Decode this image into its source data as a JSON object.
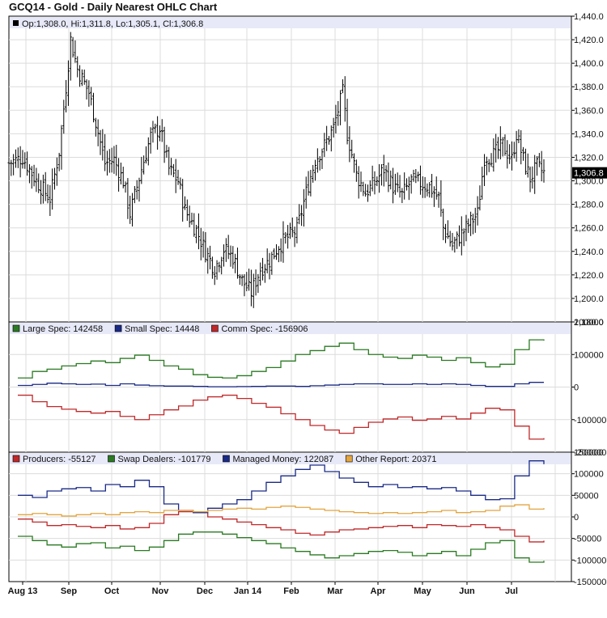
{
  "title": "GCQ14 - Gold - Daily Nearest OHLC Chart",
  "colors": {
    "price": "#000000",
    "large_spec": "#2a7a22",
    "small_spec": "#1a2a86",
    "comm_spec": "#c0282a",
    "producers": "#c0282a",
    "swap_dealers": "#2a7a22",
    "managed_money": "#1a2a86",
    "other_report": "#e3a540",
    "legend_band": "#e7e9f8",
    "grid": "#dcdcdc"
  },
  "x_labels": [
    "Aug 13",
    "Sep",
    "Oct",
    "Nov",
    "Dec",
    "Jan 14",
    "Feb",
    "Mar",
    "Apr",
    "May",
    "Jun",
    "Jul"
  ],
  "chart_data": [
    {
      "type": "ohlc",
      "legend": "Op:1,308.0, Hi:1,311.8, Lo:1,305.1, Cl:1,306.8",
      "last_value_label": "1,306.8",
      "last_close": 1306.8,
      "ylim": [
        1180,
        1440
      ],
      "y_ticks": [
        1180,
        1200,
        1220,
        1240,
        1260,
        1280,
        1300,
        1320,
        1340,
        1360,
        1380,
        1400,
        1420,
        1440
      ],
      "y_tick_labels": [
        "1,180.0",
        "1,200.0",
        "1,220.0",
        "1,240.0",
        "1,260.0",
        "1,280.0",
        "1,300.0",
        "1,320.0",
        "1,340.0",
        "1,360.0",
        "1,380.0",
        "1,400.0",
        "1,420.0",
        "1,440.0"
      ],
      "close_path": [
        [
          0,
          1315
        ],
        [
          6,
          1320
        ],
        [
          12,
          1300
        ],
        [
          18,
          1285
        ],
        [
          22,
          1325
        ],
        [
          25,
          1380
        ],
        [
          27,
          1420
        ],
        [
          30,
          1395
        ],
        [
          35,
          1375
        ],
        [
          38,
          1350
        ],
        [
          42,
          1315
        ],
        [
          46,
          1318
        ],
        [
          50,
          1300
        ],
        [
          53,
          1272
        ],
        [
          58,
          1310
        ],
        [
          62,
          1338
        ],
        [
          66,
          1345
        ],
        [
          70,
          1310
        ],
        [
          74,
          1300
        ],
        [
          77,
          1275
        ],
        [
          82,
          1258
        ],
        [
          86,
          1240
        ],
        [
          90,
          1225
        ],
        [
          94,
          1242
        ],
        [
          98,
          1235
        ],
        [
          102,
          1215
        ],
        [
          106,
          1205
        ],
        [
          110,
          1225
        ],
        [
          114,
          1232
        ],
        [
          118,
          1245
        ],
        [
          122,
          1252
        ],
        [
          126,
          1258
        ],
        [
          130,
          1290
        ],
        [
          134,
          1318
        ],
        [
          138,
          1330
        ],
        [
          142,
          1345
        ],
        [
          146,
          1375
        ],
        [
          148,
          1340
        ],
        [
          152,
          1305
        ],
        [
          156,
          1290
        ],
        [
          160,
          1298
        ],
        [
          164,
          1310
        ],
        [
          168,
          1295
        ],
        [
          172,
          1288
        ],
        [
          176,
          1300
        ],
        [
          180,
          1298
        ],
        [
          184,
          1295
        ],
        [
          188,
          1285
        ],
        [
          190,
          1260
        ],
        [
          194,
          1245
        ],
        [
          198,
          1255
        ],
        [
          202,
          1265
        ],
        [
          205,
          1272
        ],
        [
          208,
          1320
        ],
        [
          212,
          1322
        ],
        [
          216,
          1330
        ],
        [
          220,
          1318
        ],
        [
          222,
          1340
        ],
        [
          225,
          1318
        ],
        [
          228,
          1302
        ],
        [
          231,
          1312
        ],
        [
          234,
          1306.8
        ]
      ]
    },
    {
      "type": "line",
      "ylim": [
        -200000,
        200000
      ],
      "y_ticks": [
        200000,
        100000,
        0,
        -100000,
        -200000
      ],
      "y_tick_labels": [
        "200000",
        "100000",
        "0",
        "-100000",
        "-200000"
      ],
      "series": [
        {
          "name": "Large Spec",
          "legend": "Large Spec: 142458",
          "color_key": "large_spec",
          "values": [
            28000,
            48000,
            55000,
            65000,
            72000,
            80000,
            75000,
            88000,
            98000,
            82000,
            65000,
            55000,
            38000,
            30000,
            28000,
            35000,
            48000,
            60000,
            80000,
            100000,
            112000,
            125000,
            135000,
            115000,
            100000,
            92000,
            88000,
            98000,
            92000,
            82000,
            90000,
            75000,
            62000,
            70000,
            115000,
            145000,
            142458
          ]
        },
        {
          "name": "Small Spec",
          "legend": "Small Spec: 14448",
          "color_key": "small_spec",
          "values": [
            5000,
            8000,
            12000,
            10000,
            8000,
            9000,
            5000,
            10000,
            6000,
            4000,
            3000,
            3000,
            2000,
            1000,
            1000,
            1500,
            2000,
            3000,
            3000,
            2000,
            4000,
            6000,
            8000,
            10000,
            10000,
            8000,
            8000,
            10000,
            8000,
            10000,
            8000,
            5000,
            2000,
            2000,
            10000,
            14448,
            14448
          ]
        },
        {
          "name": "Comm Spec",
          "legend": "Comm Spec: -156906",
          "color_key": "comm_spec",
          "values": [
            -25000,
            -45000,
            -60000,
            -68000,
            -75000,
            -80000,
            -75000,
            -90000,
            -100000,
            -85000,
            -70000,
            -58000,
            -40000,
            -30000,
            -25000,
            -35000,
            -50000,
            -62000,
            -82000,
            -100000,
            -118000,
            -132000,
            -142000,
            -124000,
            -108000,
            -98000,
            -92000,
            -102000,
            -98000,
            -90000,
            -98000,
            -80000,
            -65000,
            -70000,
            -120000,
            -160000,
            -156906
          ]
        }
      ]
    },
    {
      "type": "line",
      "ylim": [
        -150000,
        150000
      ],
      "y_ticks": [
        150000,
        100000,
        50000,
        0,
        -50000,
        -100000,
        -150000
      ],
      "y_tick_labels": [
        "150000",
        "100000",
        "50000",
        "0",
        "-50000",
        "-100000",
        "-150000"
      ],
      "series": [
        {
          "name": "Producers",
          "legend": "Producers: -55127",
          "color_key": "producers",
          "values": [
            -5000,
            -12000,
            -20000,
            -18000,
            -22000,
            -25000,
            -20000,
            -28000,
            -25000,
            -15000,
            5000,
            12000,
            10000,
            0,
            -5000,
            -12000,
            -18000,
            -25000,
            -30000,
            -38000,
            -42000,
            -35000,
            -30000,
            -28000,
            -25000,
            -22000,
            -20000,
            -25000,
            -18000,
            -20000,
            -22000,
            -18000,
            -25000,
            -30000,
            -45000,
            -58000,
            -55127
          ]
        },
        {
          "name": "Swap Dealers",
          "legend": "Swap Dealers: -101779",
          "color_key": "swap_dealers",
          "values": [
            -45000,
            -55000,
            -65000,
            -70000,
            -62000,
            -60000,
            -72000,
            -68000,
            -78000,
            -70000,
            -55000,
            -40000,
            -35000,
            -35000,
            -40000,
            -48000,
            -55000,
            -62000,
            -72000,
            -80000,
            -88000,
            -95000,
            -90000,
            -85000,
            -80000,
            -78000,
            -82000,
            -90000,
            -85000,
            -80000,
            -90000,
            -75000,
            -60000,
            -55000,
            -95000,
            -105000,
            -101779
          ]
        },
        {
          "name": "Managed Money",
          "legend": "Managed Money: 122087",
          "color_key": "managed_money",
          "values": [
            50000,
            45000,
            60000,
            65000,
            68000,
            60000,
            75000,
            70000,
            85000,
            70000,
            30000,
            15000,
            10000,
            20000,
            30000,
            40000,
            60000,
            80000,
            95000,
            110000,
            120000,
            105000,
            90000,
            80000,
            70000,
            75000,
            68000,
            70000,
            65000,
            68000,
            60000,
            50000,
            40000,
            42000,
            95000,
            130000,
            122087
          ]
        },
        {
          "name": "Other Report",
          "legend": "Other Report: 20371",
          "color_key": "other_report",
          "values": [
            5000,
            8000,
            5000,
            2000,
            5000,
            8000,
            5000,
            10000,
            12000,
            10000,
            15000,
            15000,
            12000,
            15000,
            18000,
            20000,
            18000,
            22000,
            25000,
            22000,
            18000,
            15000,
            12000,
            10000,
            8000,
            10000,
            8000,
            10000,
            12000,
            15000,
            10000,
            12000,
            15000,
            25000,
            28000,
            18000,
            20371
          ]
        }
      ]
    }
  ]
}
